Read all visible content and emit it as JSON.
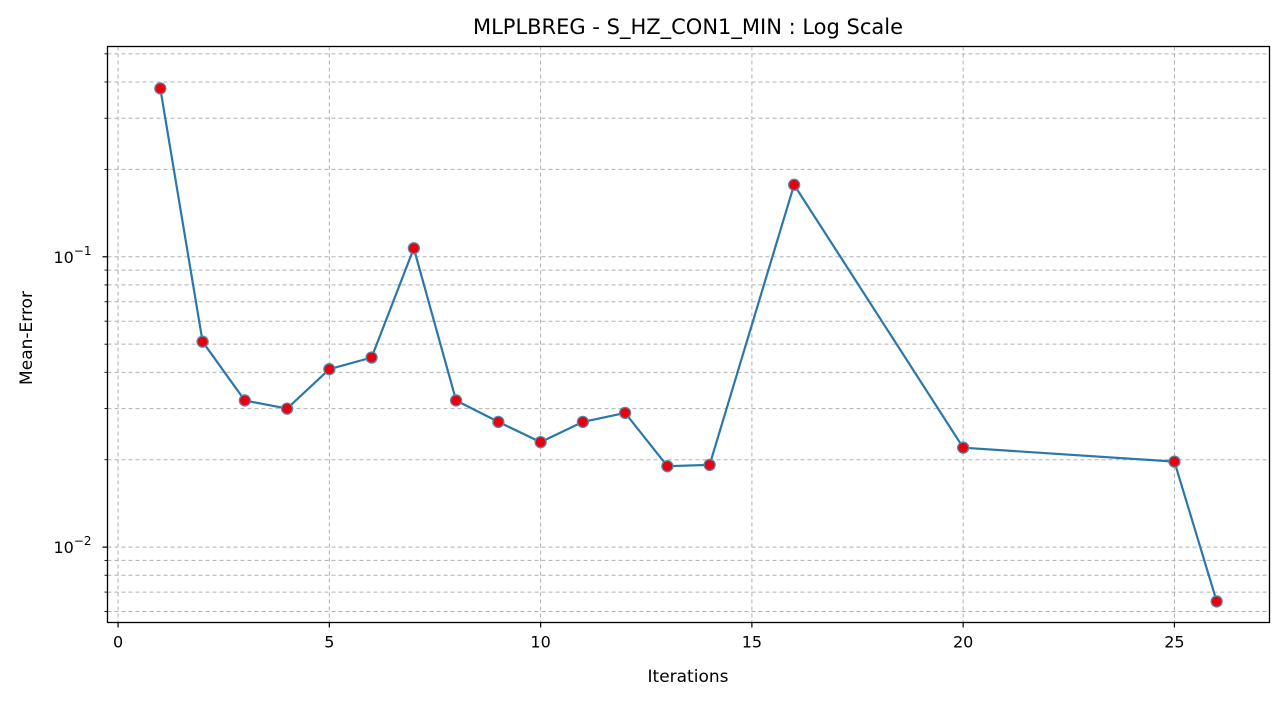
{
  "chart_data": {
    "type": "line",
    "title": "MLPLBREG - S_HZ_CON1_MIN : Log Scale",
    "xlabel": "Iterations",
    "ylabel": "Mean-Error",
    "xlim": [
      -0.25,
      27.25
    ],
    "ylim": [
      0.0055,
      0.53
    ],
    "yscale": "log",
    "grid": true,
    "x_ticks": [
      0,
      5,
      10,
      15,
      20,
      25
    ],
    "y_ticks": [
      {
        "value": 0.01,
        "base": "10",
        "exp": "−2"
      },
      {
        "value": 0.1,
        "base": "10",
        "exp": "−1"
      }
    ],
    "series": [
      {
        "x": [
          1,
          2,
          3,
          4,
          5,
          6,
          7,
          8,
          9,
          10,
          11,
          12,
          13,
          14,
          16,
          20,
          25,
          26
        ],
        "y": [
          0.38,
          0.051,
          0.032,
          0.03,
          0.041,
          0.045,
          0.107,
          0.032,
          0.027,
          0.023,
          0.027,
          0.029,
          0.019,
          0.0192,
          0.177,
          0.022,
          0.0197,
          0.0065
        ],
        "line_color": "#2a77aa",
        "marker_face": "#e8000b",
        "marker_edge": "#5a84ad"
      }
    ]
  }
}
